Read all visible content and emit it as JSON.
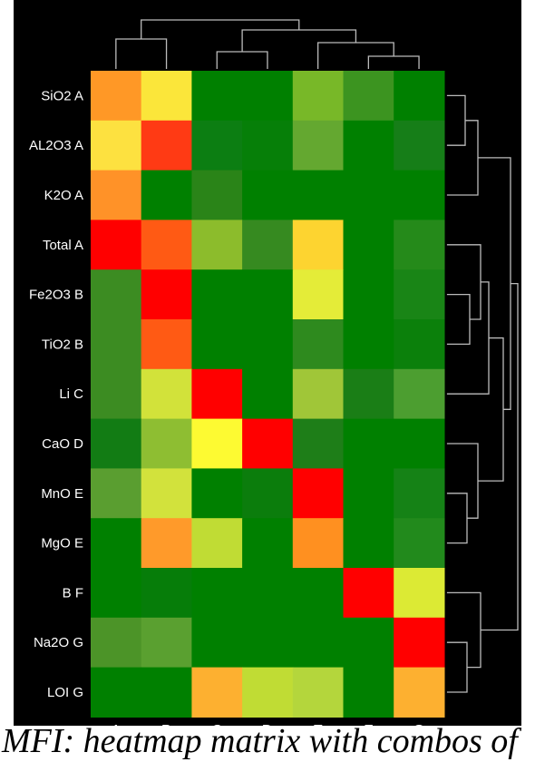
{
  "chart_data": {
    "type": "heatmap",
    "title": "",
    "xlabel": "",
    "ylabel": "",
    "columns": [
      "A",
      "B",
      "C",
      "D",
      "E",
      "F",
      "G"
    ],
    "rows": [
      "SiO2 A",
      "AL2O3 A",
      "K2O A",
      "Total A",
      "Fe2O3 B",
      "TiO2 B",
      "Li C",
      "CaO D",
      "MnO E",
      "MgO E",
      "B F",
      "Na2O G",
      "LOI G"
    ],
    "cell_colors": [
      [
        "#ff9826",
        "#fbe63a",
        "#008000",
        "#008000",
        "#78b828",
        "#3c9420",
        "#008000"
      ],
      [
        "#fde140",
        "#ff3a14",
        "#0c7e12",
        "#067f08",
        "#64a830",
        "#008000",
        "#167e18"
      ],
      [
        "#ff9228",
        "#008000",
        "#2a8418",
        "#008000",
        "#008000",
        "#008000",
        "#008000"
      ],
      [
        "#ff0000",
        "#ff5a14",
        "#8cbc2c",
        "#368a20",
        "#fdd430",
        "#008000",
        "#258a1a"
      ],
      [
        "#3c8c22",
        "#ff0000",
        "#008000",
        "#008000",
        "#e4ec38",
        "#008000",
        "#198516"
      ],
      [
        "#3c8c22",
        "#ff5a14",
        "#008000",
        "#008000",
        "#2e8a1e",
        "#008000",
        "#0b800b"
      ],
      [
        "#3c8c22",
        "#d2e23a",
        "#ff0000",
        "#008000",
        "#a0c638",
        "#1a7e16",
        "#4c9e30"
      ],
      [
        "#127c14",
        "#8ebe32",
        "#fdfa32",
        "#ff0000",
        "#1e7e18",
        "#008000",
        "#008000"
      ],
      [
        "#5a9e30",
        "#d2e23c",
        "#008000",
        "#0b7d0c",
        "#ff0000",
        "#008000",
        "#158216"
      ],
      [
        "#008000",
        "#ff9a2a",
        "#c0dc34",
        "#008000",
        "#ff9020",
        "#008000",
        "#228a1c"
      ],
      [
        "#008000",
        "#067d09",
        "#008000",
        "#008000",
        "#008000",
        "#ff0000",
        "#dcea34"
      ],
      [
        "#4c9428",
        "#5aa030",
        "#008000",
        "#008000",
        "#008000",
        "#008000",
        "#ff0000"
      ],
      [
        "#008000",
        "#008000",
        "#fdb030",
        "#c0dc34",
        "#b4d63c",
        "#008000",
        "#fdb030"
      ]
    ],
    "column_dendrogram": true,
    "row_dendrogram": true,
    "dendrogram_color": "#bbbbbb",
    "background": "#000000",
    "legend": "none"
  },
  "caption": "MFI: heatmap matrix with combos of"
}
